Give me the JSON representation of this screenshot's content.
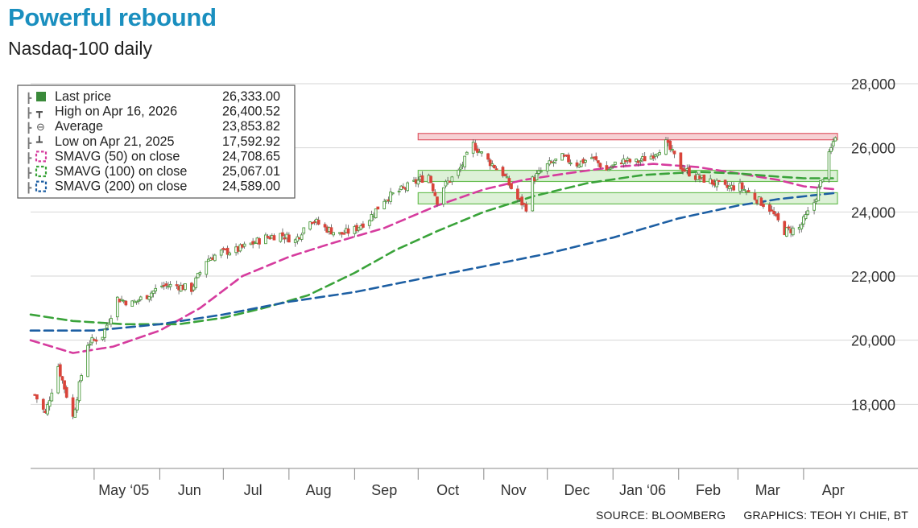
{
  "header": {
    "title": "Powerful rebound",
    "subtitle": "Nasdaq-100 daily"
  },
  "footer": {
    "source": "SOURCE: BLOOMBERG",
    "credit": "GRAPHICS: TEOH YI CHIE, BT"
  },
  "chart_data": {
    "type": "line",
    "title": "Powerful rebound",
    "subtitle": "Nasdaq-100 daily",
    "ylim": [
      16000,
      28000
    ],
    "y_ticks": [
      18000,
      20000,
      22000,
      24000,
      26000,
      28000
    ],
    "y_tick_labels": [
      "18,000",
      "20,000",
      "22,000",
      "24,000",
      "26,000",
      "28,000"
    ],
    "x_range": [
      "2025-04-01",
      "2026-04-17"
    ],
    "x_ticks": [
      {
        "date": "2025-05-15",
        "label": "May ‘05"
      },
      {
        "date": "2025-06-15",
        "label": "Jun"
      },
      {
        "date": "2025-07-15",
        "label": "Jul"
      },
      {
        "date": "2025-08-15",
        "label": "Aug"
      },
      {
        "date": "2025-09-15",
        "label": "Sep"
      },
      {
        "date": "2025-10-15",
        "label": "Oct"
      },
      {
        "date": "2025-11-15",
        "label": "Nov"
      },
      {
        "date": "2025-12-15",
        "label": "Dec"
      },
      {
        "date": "2026-01-15",
        "label": "Jan ‘06"
      },
      {
        "date": "2026-02-15",
        "label": "Feb"
      },
      {
        "date": "2026-03-15",
        "label": "Mar"
      },
      {
        "date": "2026-04-15",
        "label": "Apr"
      }
    ],
    "grid": true,
    "legend_position": "top-left",
    "legend": [
      {
        "label": "Last price",
        "value": "26,333.00",
        "color": "#3a8a3a"
      },
      {
        "label": "High on Apr 16, 2026",
        "value": "26,400.52",
        "color": "#555555"
      },
      {
        "label": "Average",
        "value": "23,853.82",
        "color": "#555555"
      },
      {
        "label": "Low on Apr 21, 2025",
        "value": "17,592.92",
        "color": "#555555"
      },
      {
        "label": "SMAVG (50) on close",
        "value": "24,708.65",
        "color": "#d63c9e"
      },
      {
        "label": "SMAVG (100) on close",
        "value": "25,067.01",
        "color": "#3aa33a"
      },
      {
        "label": "SMAVG (200) on close",
        "value": "24,589.00",
        "color": "#1d5fa3"
      }
    ],
    "resistance_zone": {
      "y": [
        26250,
        26450
      ],
      "x": [
        "2025-10-01",
        "2026-04-17"
      ],
      "color": "#e05a66"
    },
    "support_zones": [
      {
        "y": [
          24950,
          25300
        ],
        "x": [
          "2025-10-01",
          "2026-04-17"
        ],
        "color": "#8fcf7a"
      },
      {
        "y": [
          24250,
          24600
        ],
        "x": [
          "2025-10-01",
          "2026-04-17"
        ],
        "color": "#8fcf7a"
      }
    ],
    "price_series": {
      "name": "Last price",
      "x": [
        "2025-04-03",
        "2025-04-08",
        "2025-04-14",
        "2025-04-21",
        "2025-04-28",
        "2025-05-05",
        "2025-05-12",
        "2025-05-19",
        "2025-05-26",
        "2025-06-02",
        "2025-06-09",
        "2025-06-16",
        "2025-06-23",
        "2025-06-30",
        "2025-07-07",
        "2025-07-14",
        "2025-07-21",
        "2025-07-28",
        "2025-08-04",
        "2025-08-11",
        "2025-08-18",
        "2025-08-25",
        "2025-09-01",
        "2025-09-08",
        "2025-09-15",
        "2025-09-22",
        "2025-09-29",
        "2025-10-06",
        "2025-10-10",
        "2025-10-13",
        "2025-10-20",
        "2025-10-27",
        "2025-11-03",
        "2025-11-10",
        "2025-11-17",
        "2025-11-21",
        "2025-11-24",
        "2025-12-01",
        "2025-12-08",
        "2025-12-15",
        "2025-12-22",
        "2025-12-29",
        "2026-01-05",
        "2026-01-12",
        "2026-01-19",
        "2026-01-26",
        "2026-02-02",
        "2026-02-09",
        "2026-02-16",
        "2026-02-23",
        "2026-03-02",
        "2026-03-09",
        "2026-03-16",
        "2026-03-23",
        "2026-03-30",
        "2026-04-06",
        "2026-04-10",
        "2026-04-16"
      ],
      "y": [
        18300,
        17700,
        19200,
        17600,
        19900,
        20150,
        21300,
        21150,
        21400,
        21700,
        21700,
        21600,
        22500,
        22750,
        22800,
        23000,
        23200,
        23300,
        23100,
        23800,
        23500,
        23300,
        23450,
        23800,
        24400,
        24650,
        24900,
        25150,
        24350,
        24800,
        25250,
        26100,
        25600,
        25200,
        24400,
        24150,
        25000,
        25450,
        25700,
        25500,
        25700,
        25300,
        25600,
        25550,
        25750,
        26150,
        25400,
        25100,
        24950,
        24750,
        24800,
        24450,
        24100,
        23400,
        23500,
        24300,
        25100,
        26400
      ]
    },
    "series": [
      {
        "name": "SMAVG (50) on close",
        "x": [
          "2025-04-01",
          "2025-04-21",
          "2025-05-10",
          "2025-06-01",
          "2025-06-20",
          "2025-07-10",
          "2025-08-01",
          "2025-08-20",
          "2025-09-15",
          "2025-10-10",
          "2025-11-01",
          "2025-11-20",
          "2025-12-10",
          "2026-01-01",
          "2026-01-20",
          "2026-02-10",
          "2026-03-01",
          "2026-03-20",
          "2026-04-01",
          "2026-04-17"
        ],
        "y": [
          20000,
          19600,
          19800,
          20300,
          21000,
          22000,
          22600,
          23000,
          23500,
          24200,
          24700,
          25000,
          25200,
          25400,
          25500,
          25400,
          25200,
          25000,
          24800,
          24700
        ]
      },
      {
        "name": "SMAVG (100) on close",
        "x": [
          "2025-04-01",
          "2025-04-21",
          "2025-05-15",
          "2025-06-10",
          "2025-07-01",
          "2025-07-20",
          "2025-08-10",
          "2025-09-01",
          "2025-09-20",
          "2025-10-10",
          "2025-11-01",
          "2025-11-25",
          "2025-12-20",
          "2026-01-15",
          "2026-02-10",
          "2026-03-01",
          "2026-03-20",
          "2026-04-01",
          "2026-04-17"
        ],
        "y": [
          20800,
          20600,
          20500,
          20500,
          20700,
          21000,
          21400,
          22100,
          22800,
          23400,
          24000,
          24500,
          24900,
          25150,
          25250,
          25200,
          25100,
          25050,
          25050
        ]
      },
      {
        "name": "SMAVG (200) on close",
        "x": [
          "2025-04-01",
          "2025-05-01",
          "2025-06-01",
          "2025-07-01",
          "2025-08-01",
          "2025-09-01",
          "2025-10-01",
          "2025-11-01",
          "2025-12-01",
          "2026-01-01",
          "2026-02-01",
          "2026-03-01",
          "2026-03-20",
          "2026-04-17"
        ],
        "y": [
          20300,
          20300,
          20500,
          20800,
          21200,
          21500,
          21900,
          22300,
          22700,
          23200,
          23800,
          24200,
          24400,
          24600
        ]
      }
    ]
  }
}
